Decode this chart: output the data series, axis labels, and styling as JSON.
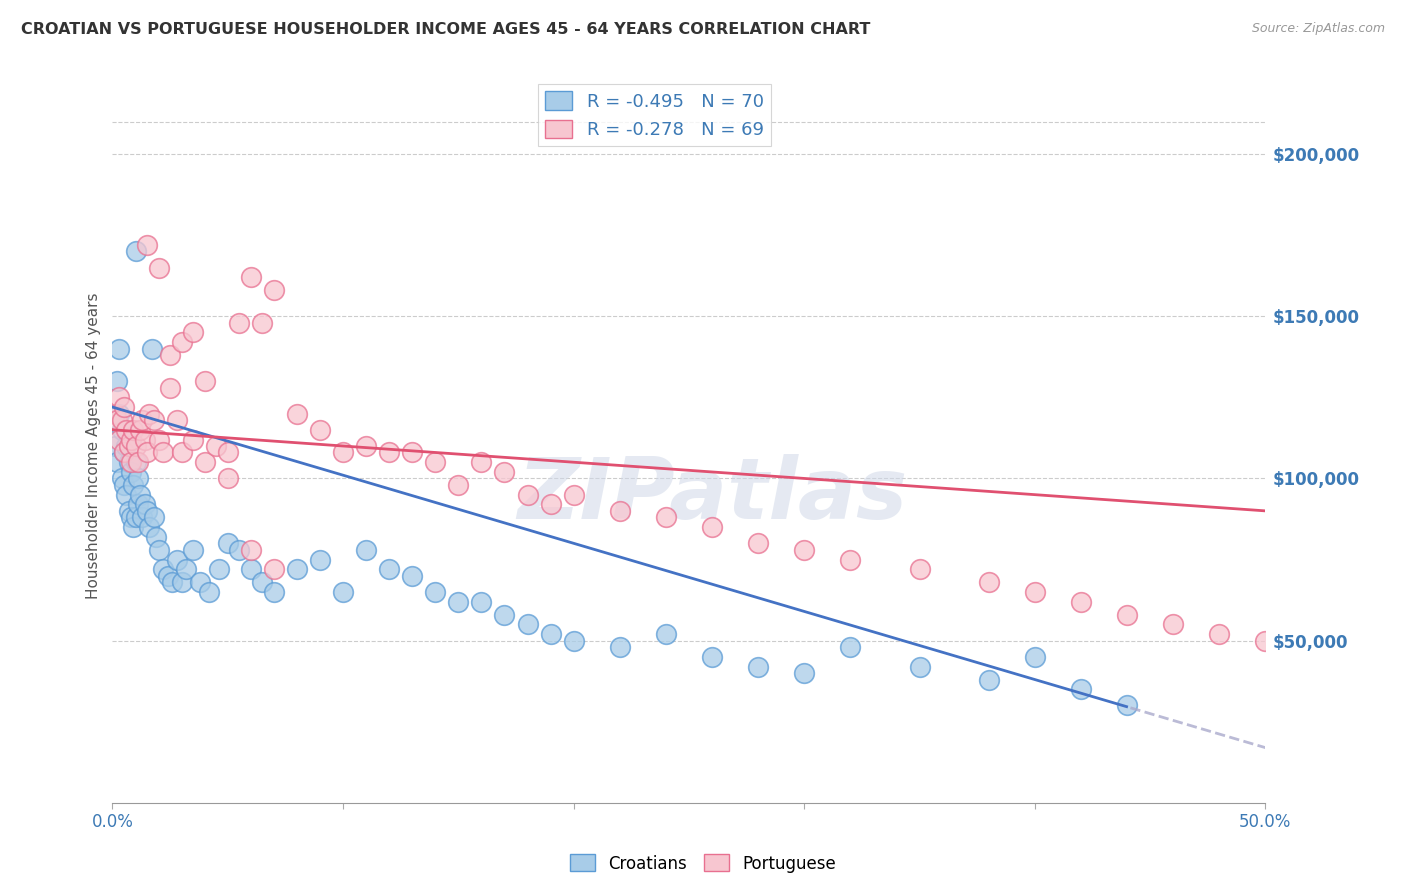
{
  "title": "CROATIAN VS PORTUGUESE HOUSEHOLDER INCOME AGES 45 - 64 YEARS CORRELATION CHART",
  "source": "Source: ZipAtlas.com",
  "ylabel": "Householder Income Ages 45 - 64 years",
  "ytick_values": [
    50000,
    100000,
    150000,
    200000
  ],
  "xmin": 0.0,
  "xmax": 0.5,
  "ymin": 0,
  "ymax": 220000,
  "legend_label1": "Croatians",
  "legend_label2": "Portuguese",
  "blue_scatter": "#a8cce8",
  "blue_edge": "#5b9bd5",
  "pink_scatter": "#f7c6d0",
  "pink_edge": "#e87090",
  "line_blue": "#4472c4",
  "line_pink": "#e05070",
  "watermark": "ZIPatlas",
  "R_croatian": -0.495,
  "N_croatian": 70,
  "R_portuguese": -0.278,
  "N_portuguese": 69,
  "blue_intercept": 122000,
  "blue_slope": -210000,
  "pink_intercept": 115000,
  "pink_slope": -50000,
  "croatian_x": [
    0.001,
    0.002,
    0.002,
    0.003,
    0.003,
    0.004,
    0.004,
    0.005,
    0.005,
    0.006,
    0.006,
    0.007,
    0.007,
    0.008,
    0.008,
    0.009,
    0.009,
    0.01,
    0.01,
    0.011,
    0.011,
    0.012,
    0.013,
    0.014,
    0.015,
    0.016,
    0.017,
    0.018,
    0.019,
    0.02,
    0.022,
    0.024,
    0.026,
    0.028,
    0.03,
    0.032,
    0.035,
    0.038,
    0.042,
    0.046,
    0.05,
    0.055,
    0.06,
    0.065,
    0.07,
    0.08,
    0.09,
    0.1,
    0.11,
    0.12,
    0.13,
    0.14,
    0.15,
    0.16,
    0.17,
    0.18,
    0.19,
    0.2,
    0.22,
    0.24,
    0.26,
    0.28,
    0.3,
    0.32,
    0.35,
    0.38,
    0.4,
    0.42,
    0.44,
    0.01
  ],
  "croatian_y": [
    110000,
    130000,
    105000,
    140000,
    120000,
    115000,
    100000,
    108000,
    98000,
    110000,
    95000,
    105000,
    90000,
    102000,
    88000,
    98000,
    85000,
    105000,
    88000,
    100000,
    92000,
    95000,
    88000,
    92000,
    90000,
    85000,
    140000,
    88000,
    82000,
    78000,
    72000,
    70000,
    68000,
    75000,
    68000,
    72000,
    78000,
    68000,
    65000,
    72000,
    80000,
    78000,
    72000,
    68000,
    65000,
    72000,
    75000,
    65000,
    78000,
    72000,
    70000,
    65000,
    62000,
    62000,
    58000,
    55000,
    52000,
    50000,
    48000,
    52000,
    45000,
    42000,
    40000,
    48000,
    42000,
    38000,
    45000,
    35000,
    30000,
    170000
  ],
  "portuguese_x": [
    0.001,
    0.002,
    0.003,
    0.003,
    0.004,
    0.005,
    0.005,
    0.006,
    0.007,
    0.008,
    0.008,
    0.009,
    0.01,
    0.011,
    0.012,
    0.013,
    0.014,
    0.015,
    0.016,
    0.018,
    0.02,
    0.022,
    0.025,
    0.028,
    0.03,
    0.035,
    0.04,
    0.045,
    0.05,
    0.055,
    0.06,
    0.065,
    0.07,
    0.08,
    0.09,
    0.1,
    0.11,
    0.12,
    0.13,
    0.14,
    0.15,
    0.16,
    0.17,
    0.18,
    0.19,
    0.2,
    0.22,
    0.24,
    0.26,
    0.28,
    0.3,
    0.32,
    0.35,
    0.38,
    0.4,
    0.42,
    0.44,
    0.46,
    0.48,
    0.5,
    0.025,
    0.03,
    0.035,
    0.04,
    0.015,
    0.02,
    0.05,
    0.06,
    0.07
  ],
  "portuguese_y": [
    120000,
    118000,
    125000,
    112000,
    118000,
    122000,
    108000,
    115000,
    110000,
    112000,
    105000,
    115000,
    110000,
    105000,
    115000,
    118000,
    112000,
    108000,
    120000,
    118000,
    112000,
    108000,
    128000,
    118000,
    108000,
    112000,
    105000,
    110000,
    100000,
    148000,
    162000,
    148000,
    158000,
    120000,
    115000,
    108000,
    110000,
    108000,
    108000,
    105000,
    98000,
    105000,
    102000,
    95000,
    92000,
    95000,
    90000,
    88000,
    85000,
    80000,
    78000,
    75000,
    72000,
    68000,
    65000,
    62000,
    58000,
    55000,
    52000,
    50000,
    138000,
    142000,
    145000,
    130000,
    172000,
    165000,
    108000,
    78000,
    72000
  ],
  "blue_line_solid_end": 0.44,
  "blue_line_dash_start": 0.44
}
